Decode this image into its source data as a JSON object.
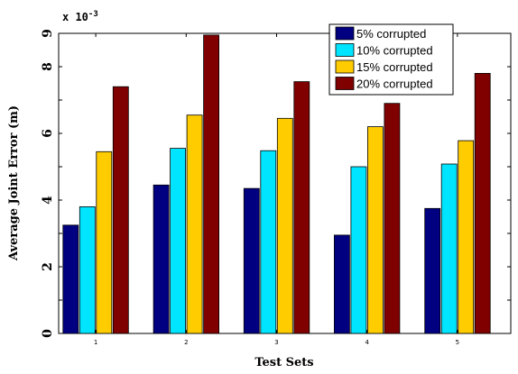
{
  "chart_data": {
    "type": "bar",
    "categories": [
      "1",
      "2",
      "3",
      "4",
      "5"
    ],
    "series": [
      {
        "name": "5%   corrupted",
        "color": "#000080",
        "values": [
          3.25,
          4.45,
          4.35,
          2.95,
          3.75
        ]
      },
      {
        "name": "10% corrupted",
        "color": "#00E5FF",
        "values": [
          3.8,
          5.55,
          5.48,
          5.0,
          5.08
        ]
      },
      {
        "name": "15% corrupted",
        "color": "#FFCC00",
        "values": [
          5.45,
          6.55,
          6.45,
          6.2,
          5.78
        ]
      },
      {
        "name": "20% corrupted",
        "color": "#800000",
        "values": [
          7.4,
          8.95,
          7.55,
          6.9,
          7.8
        ]
      }
    ],
    "xlabel": "Test Sets",
    "ylabel": "Average Joint Error (m)",
    "y_multiplier_label": "x 10^{-3}",
    "ylim": [
      0,
      9
    ],
    "y_ticks": [
      0,
      2,
      4,
      6,
      8,
      9
    ],
    "y_tick_labels": [
      "0",
      "2",
      "4",
      "6",
      "8",
      "9"
    ],
    "legend_position": "top-right",
    "grid": false
  }
}
